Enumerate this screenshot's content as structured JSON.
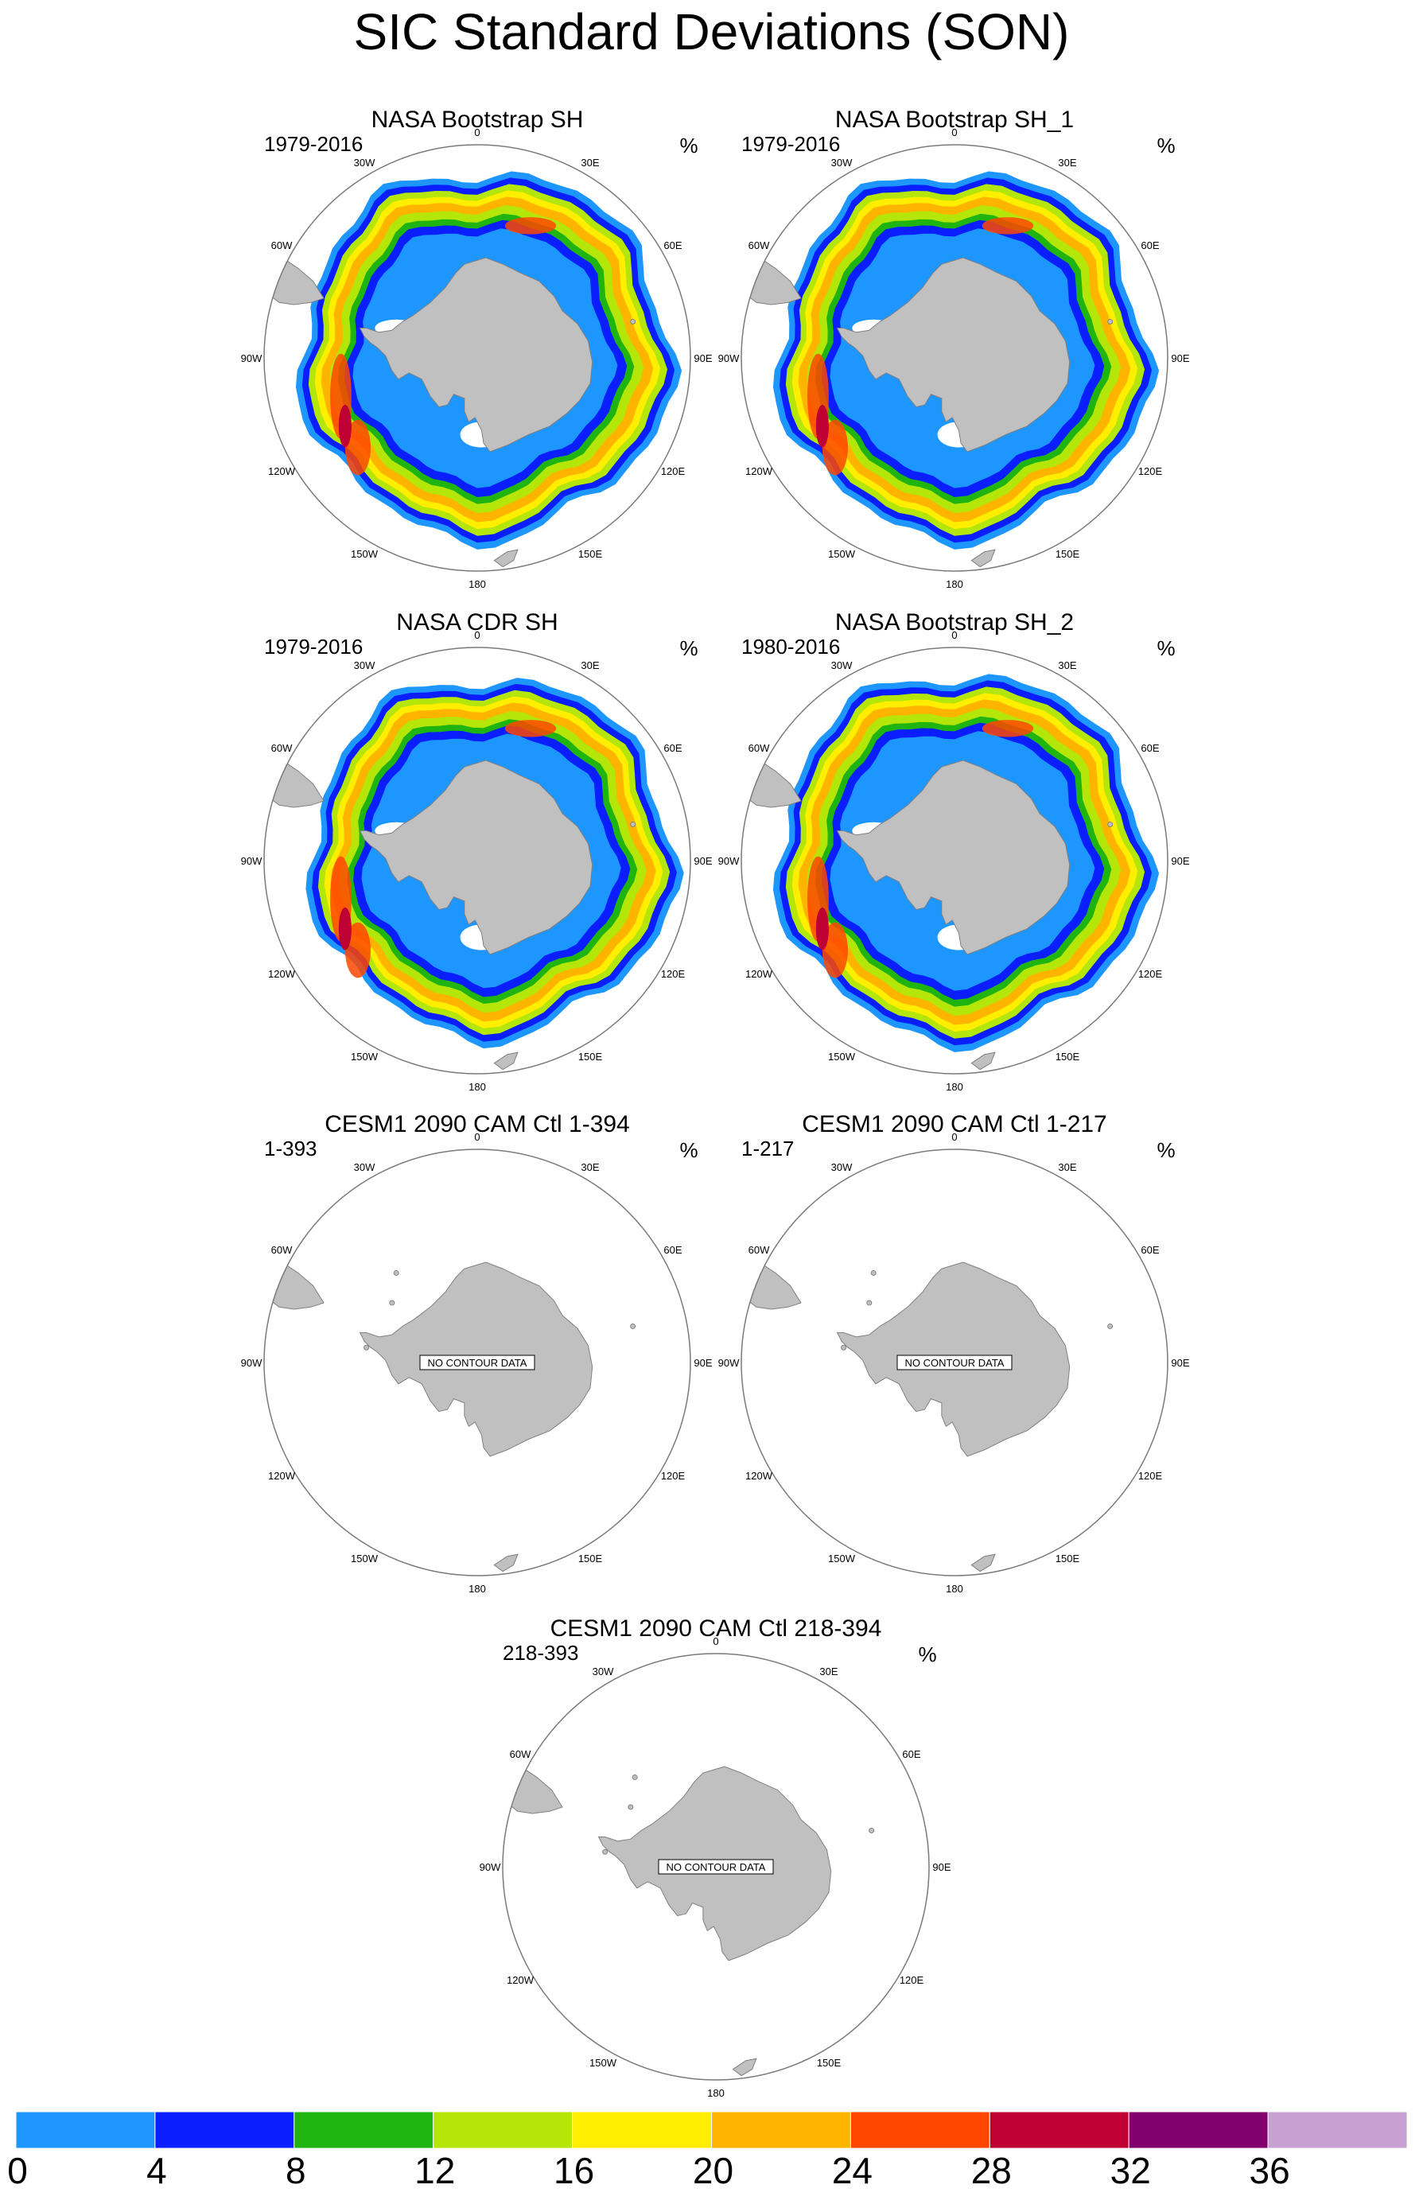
{
  "title": "SIC Standard Deviations (SON)",
  "units": "%",
  "longitude_labels": [
    "0",
    "30E",
    "60E",
    "90E",
    "120E",
    "150E",
    "180",
    "150W",
    "120W",
    "90W",
    "60W",
    "30W"
  ],
  "panels": [
    {
      "title": "NASA Bootstrap SH",
      "period": "1979-2016",
      "has_data": true,
      "no_data_label": "",
      "scale": 1.0,
      "east_shift": 0
    },
    {
      "title": "NASA Bootstrap SH_1",
      "period": "1979-2016",
      "has_data": true,
      "no_data_label": "",
      "scale": 1.0,
      "east_shift": 0
    },
    {
      "title": "NASA CDR SH",
      "period": "1979-2016",
      "has_data": true,
      "no_data_label": "",
      "scale": 0.98,
      "east_shift": 0.03
    },
    {
      "title": "NASA Bootstrap SH_2",
      "period": "1980-2016",
      "has_data": true,
      "no_data_label": "",
      "scale": 1.0,
      "east_shift": 0
    },
    {
      "title": "CESM1 2090 CAM Ctl 1-394",
      "period": "1-393",
      "has_data": false,
      "no_data_label": "NO CONTOUR DATA",
      "scale": 1.0,
      "east_shift": 0
    },
    {
      "title": "CESM1 2090 CAM Ctl 1-217",
      "period": "1-217",
      "has_data": false,
      "no_data_label": "NO CONTOUR DATA",
      "scale": 1.0,
      "east_shift": 0
    },
    {
      "title": "CESM1 2090 CAM Ctl 218-394",
      "period": "218-393",
      "has_data": false,
      "no_data_label": "NO CONTOUR DATA",
      "scale": 1.0,
      "east_shift": 0
    }
  ],
  "colorbar": {
    "labels": [
      "0",
      "4",
      "8",
      "12",
      "16",
      "20",
      "24",
      "28",
      "32",
      "36"
    ],
    "colors": [
      "#1e96ff",
      "#0a1eff",
      "#1fb40f",
      "#b4e60a",
      "#ffee00",
      "#ffb400",
      "#ff4600",
      "#be0032",
      "#82006e",
      "#c8a0d2"
    ]
  }
}
